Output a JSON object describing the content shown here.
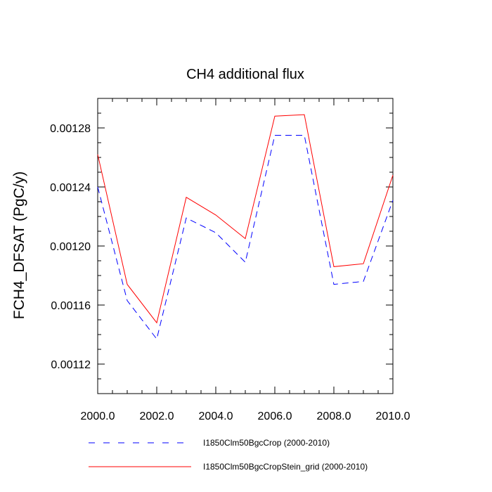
{
  "chart_data": {
    "type": "line",
    "title": "CH4 additional flux",
    "xlabel": "",
    "ylabel": "FCH4_DFSAT  (PgC/y)",
    "xlim": [
      2000,
      2010
    ],
    "ylim": [
      0.0011,
      0.0013
    ],
    "xticks": [
      2000,
      2002,
      2004,
      2006,
      2008,
      2010
    ],
    "xtick_labels": [
      "2000.0",
      "2002.0",
      "2004.0",
      "2006.0",
      "2008.0",
      "2010.0"
    ],
    "yticks": [
      0.00112,
      0.00116,
      0.0012,
      0.00124,
      0.00128
    ],
    "ytick_labels": [
      "0.00112",
      "0.00116",
      "0.00120",
      "0.00124",
      "0.00128"
    ],
    "grid": false,
    "legend_position": "bottom",
    "x": [
      2000,
      2001,
      2002,
      2003,
      2004,
      2005,
      2006,
      2007,
      2008,
      2009,
      2010
    ],
    "series": [
      {
        "name": "I1850Clm50BgcCrop (2000-2010)",
        "color": "#0000ff",
        "dash": "dashed",
        "values": [
          0.00124,
          0.001163,
          0.001137,
          0.001219,
          0.001209,
          0.001189,
          0.001275,
          0.001275,
          0.001174,
          0.001176,
          0.001231
        ]
      },
      {
        "name": "I1850Clm50BgcCropStein_grid (2000-2010)",
        "color": "#ff0000",
        "dash": "solid",
        "values": [
          0.001262,
          0.001174,
          0.001148,
          0.001233,
          0.001221,
          0.001205,
          0.001288,
          0.001289,
          0.001186,
          0.001188,
          0.001248
        ]
      }
    ]
  }
}
